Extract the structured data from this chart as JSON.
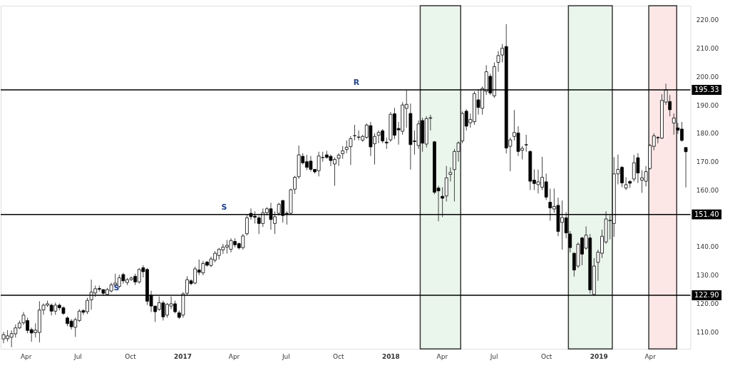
{
  "chart_data": {
    "type": "candlestick",
    "x": [
      "2016-02-22",
      "2016-02-29",
      "2016-03-07",
      "2016-03-14",
      "2016-03-21",
      "2016-03-28",
      "2016-04-04",
      "2016-04-11",
      "2016-04-18",
      "2016-04-25",
      "2016-05-02",
      "2016-05-09",
      "2016-05-16",
      "2016-05-23",
      "2016-05-30",
      "2016-06-06",
      "2016-06-13",
      "2016-06-20",
      "2016-06-27",
      "2016-07-04",
      "2016-07-11",
      "2016-07-18",
      "2016-07-25",
      "2016-08-01",
      "2016-08-08",
      "2016-08-15",
      "2016-08-22",
      "2016-08-29",
      "2016-09-05",
      "2016-09-12",
      "2016-09-19",
      "2016-09-26",
      "2016-10-03",
      "2016-10-10",
      "2016-10-17",
      "2016-10-24",
      "2016-10-31",
      "2016-11-07",
      "2016-11-14",
      "2016-11-21",
      "2016-11-28",
      "2016-12-05",
      "2016-12-12",
      "2016-12-19",
      "2016-12-26",
      "2017-01-02",
      "2017-01-09",
      "2017-01-16",
      "2017-01-23",
      "2017-01-30",
      "2017-02-06",
      "2017-02-13",
      "2017-02-20",
      "2017-02-27",
      "2017-03-06",
      "2017-03-13",
      "2017-03-20",
      "2017-03-27",
      "2017-04-03",
      "2017-04-10",
      "2017-04-17",
      "2017-04-24",
      "2017-05-01",
      "2017-05-08",
      "2017-05-15",
      "2017-05-22",
      "2017-05-29",
      "2017-06-05",
      "2017-06-12",
      "2017-06-19",
      "2017-06-26",
      "2017-07-03",
      "2017-07-10",
      "2017-07-17",
      "2017-07-24",
      "2017-07-31",
      "2017-08-07",
      "2017-08-14",
      "2017-08-21",
      "2017-08-28",
      "2017-09-04",
      "2017-09-11",
      "2017-09-18",
      "2017-09-25",
      "2017-10-02",
      "2017-10-09",
      "2017-10-16",
      "2017-10-23",
      "2017-10-30",
      "2017-11-06",
      "2017-11-13",
      "2017-11-20",
      "2017-11-27",
      "2017-12-04",
      "2017-12-11",
      "2017-12-18",
      "2017-12-25",
      "2018-01-01",
      "2018-01-08",
      "2018-01-15",
      "2018-01-22",
      "2018-01-29",
      "2018-02-05",
      "2018-02-12",
      "2018-02-19",
      "2018-02-26",
      "2018-03-05",
      "2018-03-12",
      "2018-03-19",
      "2018-03-26",
      "2018-04-02",
      "2018-04-09",
      "2018-04-16",
      "2018-04-23",
      "2018-04-30",
      "2018-05-07",
      "2018-05-14",
      "2018-05-21",
      "2018-05-28",
      "2018-06-04",
      "2018-06-11",
      "2018-06-18",
      "2018-06-25",
      "2018-07-02",
      "2018-07-09",
      "2018-07-16",
      "2018-07-23",
      "2018-07-30",
      "2018-08-06",
      "2018-08-13",
      "2018-08-20",
      "2018-08-27",
      "2018-09-03",
      "2018-09-10",
      "2018-09-17",
      "2018-09-24",
      "2018-10-01",
      "2018-10-08",
      "2018-10-15",
      "2018-10-22",
      "2018-10-29",
      "2018-11-05",
      "2018-11-12",
      "2018-11-19",
      "2018-11-26",
      "2018-12-03",
      "2018-12-10",
      "2018-12-17",
      "2018-12-24",
      "2018-12-31",
      "2019-01-07",
      "2019-01-14",
      "2019-01-21",
      "2019-01-28",
      "2019-02-04",
      "2019-02-11",
      "2019-02-18",
      "2019-02-25",
      "2019-03-04",
      "2019-03-11",
      "2019-03-18",
      "2019-03-25",
      "2019-04-01",
      "2019-04-08",
      "2019-04-15",
      "2019-04-22",
      "2019-04-29",
      "2019-05-06",
      "2019-05-13",
      "2019-05-20",
      "2019-05-27",
      "2019-06-03"
    ],
    "ohlc": [
      [
        107.5,
        110,
        106,
        109
      ],
      [
        107.6,
        110.6,
        106.6,
        108.6
      ],
      [
        108.1,
        110.5,
        104.6,
        109.4
      ],
      [
        109.3,
        112.6,
        108,
        111.4
      ],
      [
        111.4,
        114,
        111,
        113.1
      ],
      [
        113.2,
        117,
        112.5,
        115.9
      ],
      [
        114,
        115,
        109.5,
        110.5
      ],
      [
        110.8,
        111.5,
        106.5,
        109.6
      ],
      [
        109.7,
        113,
        108,
        110.6
      ],
      [
        109.8,
        120.8,
        106.3,
        117.7
      ],
      [
        117.7,
        120,
        116,
        119.4
      ],
      [
        119.4,
        121,
        118.8,
        119.9
      ],
      [
        119.4,
        120,
        115.8,
        117.3
      ],
      [
        117.3,
        120.3,
        116,
        119.4
      ],
      [
        119.4,
        120,
        117.6,
        118.5
      ],
      [
        118.5,
        119,
        116,
        116.5
      ],
      [
        114.9,
        115.5,
        112,
        112.9
      ],
      [
        113.8,
        114.5,
        110.8,
        111.8
      ],
      [
        111.6,
        115,
        108.2,
        114.3
      ],
      [
        114,
        118,
        113.5,
        117.3
      ],
      [
        117.5,
        118,
        116,
        116.9
      ],
      [
        117.1,
        122,
        116.3,
        121.1
      ],
      [
        121.3,
        128.4,
        117.8,
        124
      ],
      [
        123.7,
        126.3,
        122.3,
        125.2
      ],
      [
        125.3,
        126.3,
        124.2,
        125
      ],
      [
        124.9,
        125,
        122.8,
        123.6
      ],
      [
        123.2,
        125.5,
        122.7,
        124.9
      ],
      [
        124.4,
        127.3,
        123.9,
        126.6
      ],
      [
        126.6,
        130.5,
        125.5,
        127.2
      ],
      [
        126,
        130.2,
        125.5,
        129.1
      ],
      [
        130.2,
        130.8,
        127,
        128
      ],
      [
        127.4,
        129,
        126.5,
        128.4
      ],
      [
        128.4,
        129.5,
        128,
        129
      ],
      [
        129.6,
        130.5,
        126.5,
        127.6
      ],
      [
        127.6,
        132.5,
        127,
        132
      ],
      [
        132.6,
        133.5,
        129.2,
        131.2
      ],
      [
        132,
        132.5,
        119.5,
        120.8
      ],
      [
        122.9,
        124.5,
        117,
        119.1
      ],
      [
        119.1,
        119.1,
        113.5,
        117.1
      ],
      [
        117.9,
        122.5,
        117.5,
        120.3
      ],
      [
        120.2,
        121,
        114,
        115.3
      ],
      [
        115.9,
        120.2,
        115,
        119.7
      ],
      [
        119.1,
        122.5,
        118,
        119.9
      ],
      [
        119.9,
        121,
        116.5,
        117.1
      ],
      [
        116.7,
        117.5,
        114.5,
        115.1
      ],
      [
        115.9,
        124,
        115,
        123.4
      ],
      [
        123.6,
        129.6,
        122.8,
        128.4
      ],
      [
        128,
        128.5,
        126.5,
        127
      ],
      [
        127.2,
        133,
        126.8,
        132.2
      ],
      [
        131.8,
        135.5,
        130,
        131
      ],
      [
        130.8,
        135,
        130,
        134.1
      ],
      [
        134.6,
        135,
        133,
        133.5
      ],
      [
        133.4,
        136.5,
        132.8,
        135.7
      ],
      [
        135.3,
        138.5,
        134.5,
        137.7
      ],
      [
        136.9,
        139.6,
        135.5,
        139.1
      ],
      [
        138.9,
        141,
        137.5,
        139.9
      ],
      [
        139.9,
        142.4,
        137.6,
        140.5
      ],
      [
        139.1,
        143,
        138,
        142.2
      ],
      [
        141.9,
        143,
        139.8,
        140.7
      ],
      [
        141.1,
        141.5,
        139,
        139.6
      ],
      [
        139.7,
        144.5,
        139,
        143.8
      ],
      [
        144.6,
        151.5,
        144,
        150.2
      ],
      [
        151.8,
        153.5,
        149.5,
        150.6
      ],
      [
        150.8,
        152.5,
        148.2,
        150.4
      ],
      [
        150.2,
        151,
        144.5,
        148.2
      ],
      [
        148.2,
        153.5,
        147,
        152
      ],
      [
        152,
        154,
        151,
        153.4
      ],
      [
        153.4,
        155.5,
        146,
        149.6
      ],
      [
        148.2,
        152.5,
        144.5,
        150.6
      ],
      [
        151.8,
        155.5,
        151,
        155
      ],
      [
        156.3,
        156.5,
        148.5,
        151
      ],
      [
        151.8,
        152.5,
        147.8,
        151.5
      ],
      [
        151.8,
        160.5,
        151.5,
        160.1
      ],
      [
        160.3,
        165,
        158.6,
        164.5
      ],
      [
        164.7,
        175.7,
        164,
        172.4
      ],
      [
        171.9,
        173,
        169,
        169.6
      ],
      [
        170,
        172.4,
        167,
        168
      ],
      [
        170.2,
        172,
        166.5,
        167.3
      ],
      [
        167.3,
        167.3,
        165.8,
        166.4
      ],
      [
        166.8,
        173.5,
        164.8,
        172
      ],
      [
        171.4,
        173.5,
        170,
        171.5
      ],
      [
        172.4,
        173.8,
        171,
        171.5
      ],
      [
        171.9,
        172.5,
        168.5,
        170.4
      ],
      [
        169.2,
        171.5,
        161.5,
        170.8
      ],
      [
        171.2,
        173,
        168.5,
        172.3
      ],
      [
        172.8,
        175.5,
        171,
        173.8
      ],
      [
        174.3,
        177.5,
        173,
        175.1
      ],
      [
        175.3,
        179,
        168.8,
        178.1
      ],
      [
        179.1,
        183,
        177.5,
        179.2
      ],
      [
        178.7,
        181,
        177.5,
        178.6
      ],
      [
        177.6,
        179.5,
        177,
        178.9
      ],
      [
        178.6,
        183.5,
        178,
        182.9
      ],
      [
        182.7,
        184,
        172,
        175.2
      ],
      [
        176.3,
        180,
        169,
        178.9
      ],
      [
        179.3,
        181,
        176.5,
        180.3
      ],
      [
        180.9,
        181.5,
        176.5,
        177.3
      ],
      [
        176.9,
        178.5,
        174.5,
        176.6
      ],
      [
        177.7,
        187.5,
        177,
        186.7
      ],
      [
        186.9,
        189,
        178,
        179.3
      ],
      [
        181.7,
        184,
        176,
        181.2
      ],
      [
        180.7,
        191,
        179.5,
        190
      ],
      [
        188.8,
        195.3,
        182,
        190.2
      ],
      [
        187,
        190.5,
        167.2,
        176
      ],
      [
        177.3,
        181,
        172.5,
        177.1
      ],
      [
        175.7,
        184.5,
        174.5,
        183.3
      ],
      [
        184.5,
        185.5,
        173.5,
        176.5
      ],
      [
        176.2,
        186,
        175,
        185.2
      ],
      [
        185.3,
        186.5,
        181,
        185.5
      ],
      [
        177,
        177.3,
        158.5,
        159.2
      ],
      [
        160.7,
        161.5,
        149,
        159.7
      ],
      [
        157.8,
        161,
        150.5,
        157.1
      ],
      [
        157.9,
        168.5,
        156,
        164.3
      ],
      [
        165.5,
        168,
        163,
        166.2
      ],
      [
        167.2,
        174.5,
        156,
        173.6
      ],
      [
        173.6,
        177.2,
        170,
        176.6
      ],
      [
        177.3,
        187.7,
        176.5,
        187
      ],
      [
        187.8,
        188.5,
        181,
        182.5
      ],
      [
        183.7,
        187,
        182,
        184.9
      ],
      [
        184.1,
        194.8,
        183,
        194
      ],
      [
        191.8,
        195.5,
        186.6,
        189.1
      ],
      [
        188.8,
        196.5,
        186.6,
        195.8
      ],
      [
        194.8,
        204,
        193.5,
        201.7
      ],
      [
        200.1,
        201,
        193.5,
        194.2
      ],
      [
        193.2,
        205,
        192.5,
        203.5
      ],
      [
        205,
        209,
        201.7,
        207.4
      ],
      [
        207.6,
        211.5,
        205,
        210
      ],
      [
        210.6,
        218.5,
        172.9,
        174.8
      ],
      [
        175.4,
        178.5,
        166.6,
        177.7
      ],
      [
        178.9,
        188.2,
        177.5,
        180.3
      ],
      [
        180.1,
        182.5,
        172,
        173.6
      ],
      [
        174,
        175.5,
        170.8,
        174.7
      ],
      [
        176,
        179.5,
        173.5,
        175.9
      ],
      [
        173.6,
        174,
        160,
        163.1
      ],
      [
        163.5,
        167.3,
        160,
        162.3
      ],
      [
        161.9,
        167.2,
        158.8,
        162.9
      ],
      [
        161,
        171.7,
        160,
        164.5
      ],
      [
        162.9,
        165.8,
        156.5,
        157.5
      ],
      [
        155.7,
        160.5,
        149.2,
        153.7
      ],
      [
        153.3,
        160.5,
        152,
        154.2
      ],
      [
        154.6,
        157.3,
        143.7,
        145.4
      ],
      [
        148.6,
        156.3,
        139,
        150.3
      ],
      [
        150.2,
        152.2,
        143,
        144.9
      ],
      [
        144.5,
        145.5,
        138,
        139.7
      ],
      [
        137.7,
        138,
        129.5,
        131.8
      ],
      [
        133.2,
        141.5,
        132.5,
        140.9
      ],
      [
        143.1,
        143.5,
        133.5,
        137.4
      ],
      [
        139.5,
        147.2,
        139,
        144.1
      ],
      [
        143.1,
        144.5,
        123.5,
        124.8
      ],
      [
        123.2,
        136,
        122.8,
        133.2
      ],
      [
        134.5,
        139,
        128,
        138.1
      ],
      [
        137.7,
        146,
        136,
        143.7
      ],
      [
        141.7,
        152.5,
        141,
        149.8
      ],
      [
        149.2,
        151,
        142.6,
        149.3
      ],
      [
        148.2,
        171.6,
        143.5,
        165.7
      ],
      [
        165.7,
        172.5,
        162,
        167.3
      ],
      [
        168,
        168.5,
        161,
        162.5
      ],
      [
        160.7,
        164.5,
        160,
        161.9
      ],
      [
        163,
        163.5,
        160.8,
        162.4
      ],
      [
        163.9,
        172.4,
        163,
        169.6
      ],
      [
        171.4,
        173,
        162.5,
        166
      ],
      [
        163.5,
        167,
        159,
        164.3
      ],
      [
        163.1,
        168.5,
        161.3,
        166.5
      ],
      [
        167.6,
        176.2,
        167.2,
        175.7
      ],
      [
        175.4,
        180,
        174,
        179.1
      ],
      [
        178.5,
        179,
        176.5,
        178.4
      ],
      [
        178.3,
        193.8,
        178,
        191.6
      ],
      [
        191,
        197.5,
        190,
        195.3
      ],
      [
        191.2,
        193.5,
        186,
        188.3
      ],
      [
        183.6,
        187,
        179.5,
        185.4
      ],
      [
        181.9,
        183.7,
        179.8,
        181.1
      ],
      [
        181.5,
        184,
        177,
        177.5
      ],
      [
        175,
        175,
        160.9,
        173.5
      ]
    ],
    "xlim": [
      "2016-02-17",
      "2019-06-11"
    ],
    "xticks": [
      {
        "value": "2016-04-01",
        "label": "Apr"
      },
      {
        "value": "2016-07-01",
        "label": "Jul"
      },
      {
        "value": "2016-10-01",
        "label": "Oct"
      },
      {
        "value": "2017-01-01",
        "label": "2017"
      },
      {
        "value": "2017-04-01",
        "label": "Apr"
      },
      {
        "value": "2017-07-01",
        "label": "Jul"
      },
      {
        "value": "2017-10-01",
        "label": "Oct"
      },
      {
        "value": "2018-01-01",
        "label": "2018"
      },
      {
        "value": "2018-04-01",
        "label": "Apr"
      },
      {
        "value": "2018-07-01",
        "label": "Jul"
      },
      {
        "value": "2018-10-01",
        "label": "Oct"
      },
      {
        "value": "2019-01-01",
        "label": "2019"
      },
      {
        "value": "2019-04-01",
        "label": "Apr"
      }
    ],
    "ylim": [
      104,
      225
    ],
    "yticks": [
      {
        "value": 110,
        "label": "110.00"
      },
      {
        "value": 120,
        "label": "120.00"
      },
      {
        "value": 130,
        "label": "130.00"
      },
      {
        "value": 140,
        "label": "140.00"
      },
      {
        "value": 160,
        "label": "160.00"
      },
      {
        "value": 170,
        "label": "170.00"
      },
      {
        "value": 180,
        "label": "180.00"
      },
      {
        "value": 190,
        "label": "190.00"
      },
      {
        "value": 200,
        "label": "200.00"
      },
      {
        "value": 210,
        "label": "210.00"
      },
      {
        "value": 220,
        "label": "220.00"
      }
    ],
    "ref_lines": [
      {
        "axis": "y",
        "value": 195.33,
        "label": "195.33",
        "color": "#000000"
      },
      {
        "axis": "y",
        "value": 151.4,
        "label": "151.40",
        "color": "#000000"
      },
      {
        "axis": "y",
        "value": 122.9,
        "label": "122.90",
        "color": "#000000"
      }
    ],
    "bands": [
      {
        "axis": "x",
        "from": "2018-02-22",
        "to": "2018-05-04",
        "color": "#e8f5e9"
      },
      {
        "axis": "x",
        "from": "2018-11-09",
        "to": "2019-01-25",
        "color": "#e8f5e9"
      },
      {
        "axis": "x",
        "from": "2019-03-30",
        "to": "2019-05-18",
        "color": "#fce4e4"
      }
    ],
    "annotations": [
      {
        "text": "R",
        "x": "2017-11-02",
        "y": 195.33
      },
      {
        "text": "S",
        "x": "2017-03-15",
        "y": 151.4
      },
      {
        "text": "S",
        "x": "2016-09-07",
        "y": 122.9
      }
    ],
    "grid": false
  }
}
